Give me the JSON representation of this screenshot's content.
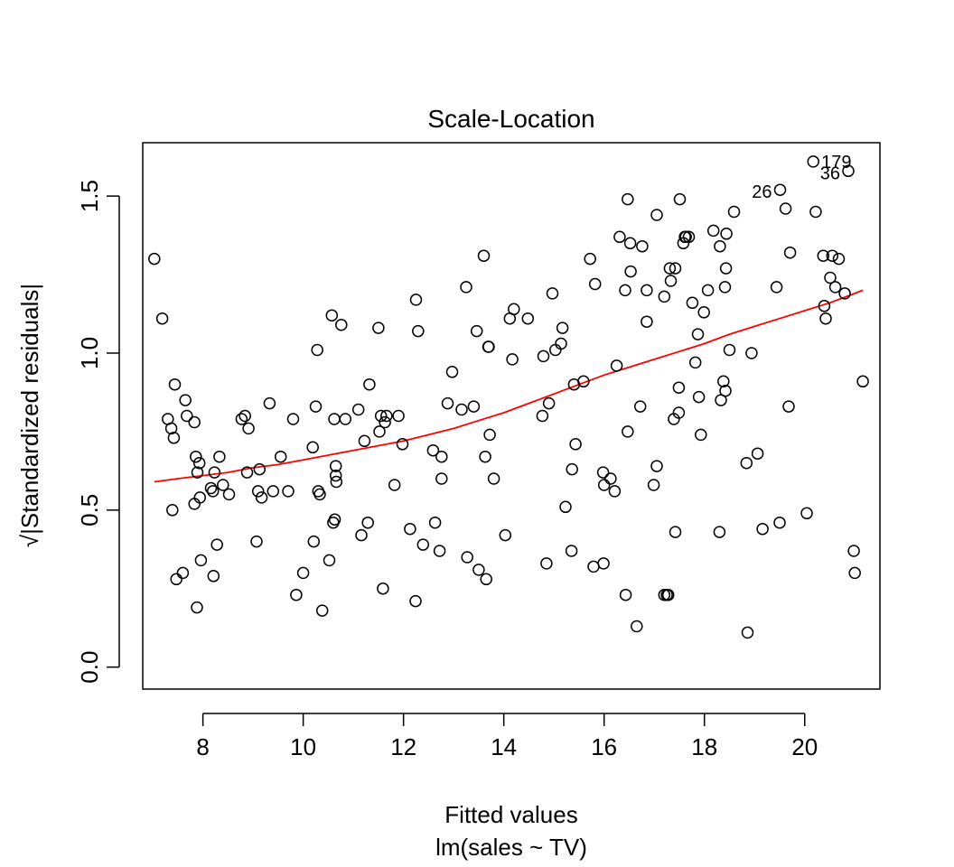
{
  "chart_data": {
    "type": "scatter",
    "title": "Scale-Location",
    "xlabel": "Fitted values",
    "subtitle": "lm(sales ~ TV)",
    "ylabel": "√|Standardized residuals|",
    "xlim": [
      6.8,
      21.5
    ],
    "ylim": [
      -0.07,
      1.67
    ],
    "xticks": [
      8,
      10,
      12,
      14,
      16,
      18,
      20
    ],
    "yticks": [
      0.0,
      0.5,
      1.0,
      1.5
    ],
    "ytick_labels": [
      "0.0",
      "0.5",
      "1.0",
      "1.5"
    ],
    "grid": false,
    "colors": {
      "points": "#000000",
      "smooth_line": "#ff0000"
    },
    "points": [
      [
        7.03,
        1.3
      ],
      [
        7.19,
        1.11
      ],
      [
        7.3,
        0.79
      ],
      [
        7.37,
        0.76
      ],
      [
        7.39,
        0.5
      ],
      [
        7.42,
        0.73
      ],
      [
        7.44,
        0.9
      ],
      [
        7.47,
        0.28
      ],
      [
        7.6,
        0.3
      ],
      [
        7.65,
        0.85
      ],
      [
        7.68,
        0.8
      ],
      [
        7.83,
        0.78
      ],
      [
        7.83,
        0.52
      ],
      [
        7.86,
        0.67
      ],
      [
        7.88,
        0.19
      ],
      [
        7.89,
        0.62
      ],
      [
        7.93,
        0.65
      ],
      [
        7.94,
        0.54
      ],
      [
        7.96,
        0.34
      ],
      [
        8.16,
        0.57
      ],
      [
        8.2,
        0.56
      ],
      [
        8.21,
        0.29
      ],
      [
        8.23,
        0.62
      ],
      [
        8.28,
        0.39
      ],
      [
        8.33,
        0.67
      ],
      [
        8.4,
        0.58
      ],
      [
        8.52,
        0.55
      ],
      [
        8.77,
        0.79
      ],
      [
        8.84,
        0.8
      ],
      [
        8.88,
        0.62
      ],
      [
        8.91,
        0.76
      ],
      [
        9.07,
        0.4
      ],
      [
        9.1,
        0.56
      ],
      [
        9.13,
        0.63
      ],
      [
        9.17,
        0.54
      ],
      [
        9.33,
        0.84
      ],
      [
        9.4,
        0.56
      ],
      [
        9.55,
        0.67
      ],
      [
        9.7,
        0.56
      ],
      [
        9.8,
        0.79
      ],
      [
        9.86,
        0.23
      ],
      [
        10.0,
        0.3
      ],
      [
        10.19,
        0.7
      ],
      [
        10.21,
        0.4
      ],
      [
        10.25,
        0.83
      ],
      [
        10.28,
        1.01
      ],
      [
        10.3,
        0.56
      ],
      [
        10.33,
        0.55
      ],
      [
        10.38,
        0.18
      ],
      [
        10.52,
        0.34
      ],
      [
        10.57,
        1.12
      ],
      [
        10.6,
        0.46
      ],
      [
        10.62,
        0.79
      ],
      [
        10.63,
        0.47
      ],
      [
        10.65,
        0.64
      ],
      [
        10.65,
        0.61
      ],
      [
        10.66,
        0.59
      ],
      [
        10.76,
        1.09
      ],
      [
        10.84,
        0.79
      ],
      [
        11.1,
        0.82
      ],
      [
        11.16,
        0.42
      ],
      [
        11.22,
        0.72
      ],
      [
        11.29,
        0.46
      ],
      [
        11.32,
        0.9
      ],
      [
        11.5,
        1.08
      ],
      [
        11.52,
        0.75
      ],
      [
        11.55,
        0.8
      ],
      [
        11.59,
        0.25
      ],
      [
        11.63,
        0.78
      ],
      [
        11.66,
        0.8
      ],
      [
        11.82,
        0.58
      ],
      [
        11.9,
        0.8
      ],
      [
        11.98,
        0.71
      ],
      [
        12.13,
        0.44
      ],
      [
        12.24,
        0.21
      ],
      [
        12.25,
        1.17
      ],
      [
        12.29,
        1.07
      ],
      [
        12.39,
        0.39
      ],
      [
        12.59,
        0.69
      ],
      [
        12.63,
        0.46
      ],
      [
        12.72,
        0.37
      ],
      [
        12.76,
        0.67
      ],
      [
        12.76,
        0.6
      ],
      [
        12.88,
        0.84
      ],
      [
        12.97,
        0.94
      ],
      [
        13.16,
        0.82
      ],
      [
        13.25,
        1.21
      ],
      [
        13.27,
        0.35
      ],
      [
        13.4,
        0.83
      ],
      [
        13.46,
        1.07
      ],
      [
        13.5,
        0.31
      ],
      [
        13.6,
        1.31
      ],
      [
        13.63,
        0.67
      ],
      [
        13.65,
        0.28
      ],
      [
        13.69,
        1.02
      ],
      [
        13.7,
        1.02
      ],
      [
        13.72,
        0.74
      ],
      [
        13.8,
        0.6
      ],
      [
        14.03,
        0.42
      ],
      [
        14.12,
        1.11
      ],
      [
        14.17,
        0.98
      ],
      [
        14.2,
        1.14
      ],
      [
        14.48,
        1.11
      ],
      [
        14.77,
        0.8
      ],
      [
        14.79,
        0.99
      ],
      [
        14.85,
        0.33
      ],
      [
        14.9,
        0.84
      ],
      [
        14.97,
        1.19
      ],
      [
        15.03,
        1.01
      ],
      [
        15.14,
        1.03
      ],
      [
        15.17,
        1.08
      ],
      [
        15.23,
        0.51
      ],
      [
        15.35,
        0.37
      ],
      [
        15.36,
        0.63
      ],
      [
        15.4,
        0.9
      ],
      [
        15.43,
        0.71
      ],
      [
        15.59,
        0.91
      ],
      [
        15.72,
        1.3
      ],
      [
        15.79,
        0.32
      ],
      [
        15.82,
        1.22
      ],
      [
        15.98,
        0.62
      ],
      [
        15.99,
        0.33
      ],
      [
        16.0,
        0.58
      ],
      [
        16.13,
        0.6
      ],
      [
        16.21,
        0.56
      ],
      [
        16.25,
        0.96
      ],
      [
        16.31,
        1.37
      ],
      [
        16.42,
        1.2
      ],
      [
        16.43,
        0.23
      ],
      [
        16.47,
        0.75
      ],
      [
        16.47,
        1.49
      ],
      [
        16.52,
        1.35
      ],
      [
        16.53,
        1.26
      ],
      [
        16.65,
        0.13
      ],
      [
        16.72,
        0.83
      ],
      [
        16.76,
        1.34
      ],
      [
        16.85,
        1.2
      ],
      [
        16.85,
        1.1
      ],
      [
        16.99,
        0.58
      ],
      [
        17.05,
        1.44
      ],
      [
        17.05,
        0.64
      ],
      [
        17.2,
        1.18
      ],
      [
        17.2,
        0.23
      ],
      [
        17.25,
        0.23
      ],
      [
        17.28,
        0.23
      ],
      [
        17.31,
        1.27
      ],
      [
        17.33,
        1.23
      ],
      [
        17.39,
        0.79
      ],
      [
        17.42,
        1.27
      ],
      [
        17.42,
        0.43
      ],
      [
        17.49,
        0.81
      ],
      [
        17.49,
        0.89
      ],
      [
        17.51,
        1.49
      ],
      [
        17.58,
        1.35
      ],
      [
        17.61,
        1.37
      ],
      [
        17.63,
        1.37
      ],
      [
        17.69,
        1.37
      ],
      [
        17.76,
        1.16
      ],
      [
        17.82,
        0.97
      ],
      [
        17.87,
        1.06
      ],
      [
        17.89,
        0.86
      ],
      [
        17.93,
        0.74
      ],
      [
        17.99,
        1.13
      ],
      [
        18.07,
        1.2
      ],
      [
        18.18,
        1.39
      ],
      [
        18.3,
        0.43
      ],
      [
        18.31,
        1.34
      ],
      [
        18.33,
        0.85
      ],
      [
        18.38,
        0.91
      ],
      [
        18.41,
        1.21
      ],
      [
        18.42,
        0.88
      ],
      [
        18.43,
        1.27
      ],
      [
        18.44,
        1.38
      ],
      [
        18.5,
        1.01
      ],
      [
        18.59,
        1.45
      ],
      [
        18.84,
        0.65
      ],
      [
        18.86,
        0.11
      ],
      [
        18.94,
        1.0
      ],
      [
        19.06,
        0.68
      ],
      [
        19.16,
        0.44
      ],
      [
        19.44,
        1.21
      ],
      [
        19.5,
        0.46
      ],
      [
        19.51,
        1.52
      ],
      [
        19.62,
        1.46
      ],
      [
        19.68,
        0.83
      ],
      [
        19.71,
        1.32
      ],
      [
        20.04,
        0.49
      ],
      [
        20.17,
        1.61
      ],
      [
        20.22,
        1.45
      ],
      [
        20.37,
        1.31
      ],
      [
        20.39,
        1.15
      ],
      [
        20.42,
        1.11
      ],
      [
        20.51,
        1.24
      ],
      [
        20.55,
        1.31
      ],
      [
        20.61,
        1.21
      ],
      [
        20.68,
        1.3
      ],
      [
        20.8,
        1.19
      ],
      [
        20.87,
        1.58
      ],
      [
        20.98,
        0.37
      ],
      [
        21.0,
        0.3
      ],
      [
        21.16,
        0.91
      ]
    ],
    "labeled_points": [
      {
        "label": "179",
        "x": 20.17,
        "y": 1.61
      },
      {
        "label": "36",
        "x": 20.87,
        "y": 1.58
      },
      {
        "label": "26",
        "x": 19.51,
        "y": 1.52
      }
    ],
    "smooth_line": [
      [
        7.03,
        0.59
      ],
      [
        7.5,
        0.6
      ],
      [
        8.0,
        0.61
      ],
      [
        8.5,
        0.62
      ],
      [
        9.0,
        0.635
      ],
      [
        9.5,
        0.645
      ],
      [
        10.0,
        0.66
      ],
      [
        10.5,
        0.675
      ],
      [
        11.0,
        0.69
      ],
      [
        11.5,
        0.705
      ],
      [
        12.0,
        0.72
      ],
      [
        12.5,
        0.74
      ],
      [
        13.0,
        0.76
      ],
      [
        13.5,
        0.785
      ],
      [
        14.0,
        0.81
      ],
      [
        14.5,
        0.84
      ],
      [
        15.0,
        0.87
      ],
      [
        15.5,
        0.9
      ],
      [
        16.0,
        0.93
      ],
      [
        16.5,
        0.955
      ],
      [
        17.0,
        0.98
      ],
      [
        17.5,
        1.005
      ],
      [
        18.0,
        1.03
      ],
      [
        18.5,
        1.06
      ],
      [
        19.0,
        1.085
      ],
      [
        19.5,
        1.11
      ],
      [
        20.0,
        1.135
      ],
      [
        20.5,
        1.16
      ],
      [
        21.0,
        1.19
      ],
      [
        21.16,
        1.2
      ]
    ]
  }
}
